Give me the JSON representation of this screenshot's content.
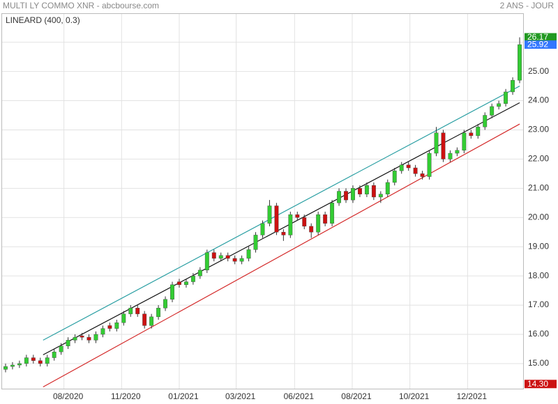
{
  "chart_data": {
    "type": "candlestick",
    "title": "MULTI LY COMMO XNR - abcbourse.com",
    "subtitle": "2 ANS - JOUR",
    "indicator": "LINEARD (400, 0.3)",
    "up_color": "#33cc33",
    "down_color": "#cc1111",
    "grid": true,
    "xlim": [
      -0.5,
      74.5
    ],
    "xticks": [
      {
        "value": 8.4,
        "label": "08/2020"
      },
      {
        "value": 16.7,
        "label": "11/2020"
      },
      {
        "value": 25.0,
        "label": "01/2021"
      },
      {
        "value": 33.2,
        "label": "03/2021"
      },
      {
        "value": 41.6,
        "label": "06/2021"
      },
      {
        "value": 49.9,
        "label": "08/2021"
      },
      {
        "value": 58.2,
        "label": "10/2021"
      },
      {
        "value": 66.5,
        "label": "12/2021"
      }
    ],
    "ylim": [
      14.14,
      26.97
    ],
    "yticks": [
      {
        "value": 15,
        "label": "15.00"
      },
      {
        "value": 16,
        "label": "16.00"
      },
      {
        "value": 17,
        "label": "17.00"
      },
      {
        "value": 18,
        "label": "18.00"
      },
      {
        "value": 19,
        "label": "19.00"
      },
      {
        "value": 20,
        "label": "20.00"
      },
      {
        "value": 21,
        "label": "21.00"
      },
      {
        "value": 22,
        "label": "22.00"
      },
      {
        "value": 23,
        "label": "23.00"
      },
      {
        "value": 24,
        "label": "24.00"
      },
      {
        "value": 25,
        "label": "25.00"
      },
      {
        "value": 26,
        "label": "26.00"
      }
    ],
    "open": [
      14.8,
      14.9,
      14.95,
      15.0,
      15.2,
      15.1,
      15.0,
      15.2,
      15.4,
      15.6,
      15.8,
      15.95,
      15.9,
      15.8,
      16.0,
      16.3,
      16.2,
      16.4,
      16.7,
      16.9,
      16.7,
      16.3,
      16.6,
      16.9,
      17.2,
      17.8,
      17.7,
      17.8,
      18.0,
      18.2,
      18.8,
      18.6,
      18.7,
      18.6,
      18.5,
      18.6,
      18.9,
      19.4,
      19.8,
      20.4,
      19.5,
      19.4,
      20.1,
      20.0,
      19.7,
      19.5,
      20.1,
      19.8,
      20.5,
      20.9,
      20.6,
      21.0,
      20.8,
      21.1,
      20.7,
      20.8,
      21.2,
      21.6,
      21.8,
      21.7,
      21.5,
      21.4,
      22.2,
      22.9,
      22.0,
      22.2,
      22.3,
      22.9,
      22.8,
      23.1,
      23.5,
      23.8,
      23.9,
      24.3,
      24.7
    ],
    "close": [
      14.9,
      14.95,
      15.0,
      15.2,
      15.1,
      15.0,
      15.2,
      15.4,
      15.6,
      15.8,
      15.9,
      15.9,
      15.8,
      16.0,
      16.2,
      16.2,
      16.4,
      16.7,
      16.9,
      16.7,
      16.3,
      16.6,
      16.9,
      17.2,
      17.7,
      17.7,
      17.8,
      18.0,
      18.2,
      18.8,
      18.6,
      18.7,
      18.6,
      18.5,
      18.6,
      18.9,
      19.4,
      19.8,
      20.4,
      19.5,
      19.4,
      20.1,
      20.0,
      19.7,
      19.5,
      20.1,
      19.8,
      20.5,
      20.9,
      20.6,
      21.0,
      20.8,
      21.1,
      20.7,
      20.8,
      21.2,
      21.6,
      21.8,
      21.7,
      21.5,
      21.4,
      22.2,
      22.9,
      22.0,
      22.2,
      22.3,
      22.9,
      22.8,
      23.1,
      23.5,
      23.8,
      23.9,
      24.3,
      24.7,
      25.92
    ],
    "high": [
      15.0,
      15.05,
      15.1,
      15.3,
      15.3,
      15.2,
      15.3,
      15.5,
      15.7,
      15.9,
      16.0,
      16.05,
      16.0,
      16.1,
      16.3,
      16.4,
      16.5,
      16.8,
      17.0,
      17.0,
      16.8,
      16.7,
      17.0,
      17.3,
      17.8,
      17.9,
      17.9,
      18.1,
      18.3,
      18.9,
      18.9,
      18.8,
      18.8,
      18.7,
      18.7,
      19.0,
      19.5,
      19.9,
      20.6,
      20.5,
      19.6,
      20.2,
      20.2,
      20.1,
      19.8,
      20.2,
      20.2,
      20.6,
      21.0,
      21.0,
      21.1,
      21.1,
      21.2,
      21.2,
      20.9,
      21.3,
      21.7,
      21.9,
      21.9,
      21.8,
      21.6,
      22.3,
      23.1,
      23.0,
      22.3,
      22.4,
      23.0,
      23.0,
      23.2,
      23.6,
      23.9,
      24.0,
      24.4,
      24.8,
      26.17
    ],
    "low": [
      14.7,
      14.8,
      14.85,
      14.9,
      15.0,
      14.9,
      14.9,
      15.1,
      15.3,
      15.5,
      15.7,
      15.8,
      15.7,
      15.7,
      15.9,
      16.1,
      16.1,
      16.3,
      16.6,
      16.6,
      16.2,
      16.2,
      16.5,
      16.8,
      17.1,
      17.6,
      17.6,
      17.7,
      17.9,
      18.1,
      18.5,
      18.5,
      18.5,
      18.4,
      18.4,
      18.5,
      18.8,
      19.3,
      19.7,
      19.4,
      19.2,
      19.3,
      19.9,
      19.6,
      19.3,
      19.4,
      19.7,
      19.7,
      20.4,
      20.5,
      20.5,
      20.7,
      20.7,
      20.6,
      20.5,
      20.7,
      21.1,
      21.5,
      21.6,
      21.4,
      21.3,
      21.3,
      22.1,
      21.9,
      21.9,
      22.1,
      22.2,
      22.7,
      22.7,
      23.0,
      23.4,
      23.7,
      23.8,
      24.2,
      24.6
    ],
    "channel": [
      {
        "color": "#2a9fa3",
        "x": [
          5.4,
          74
        ],
        "values": [
          15.8,
          24.5
        ]
      },
      {
        "color": "#111111",
        "x": [
          5.4,
          74
        ],
        "values": [
          15.3,
          23.93
        ]
      },
      {
        "color": "#d42a2a",
        "x": [
          5.4,
          74
        ],
        "values": [
          14.2,
          23.2
        ]
      }
    ],
    "price_tags": [
      {
        "value": 26.17,
        "label": "26.17",
        "color": "#229922"
      },
      {
        "value": 25.92,
        "label": "25.92",
        "color": "#3377ff"
      },
      {
        "value": 14.3,
        "label": "14.30",
        "color": "#cc1111"
      }
    ]
  }
}
